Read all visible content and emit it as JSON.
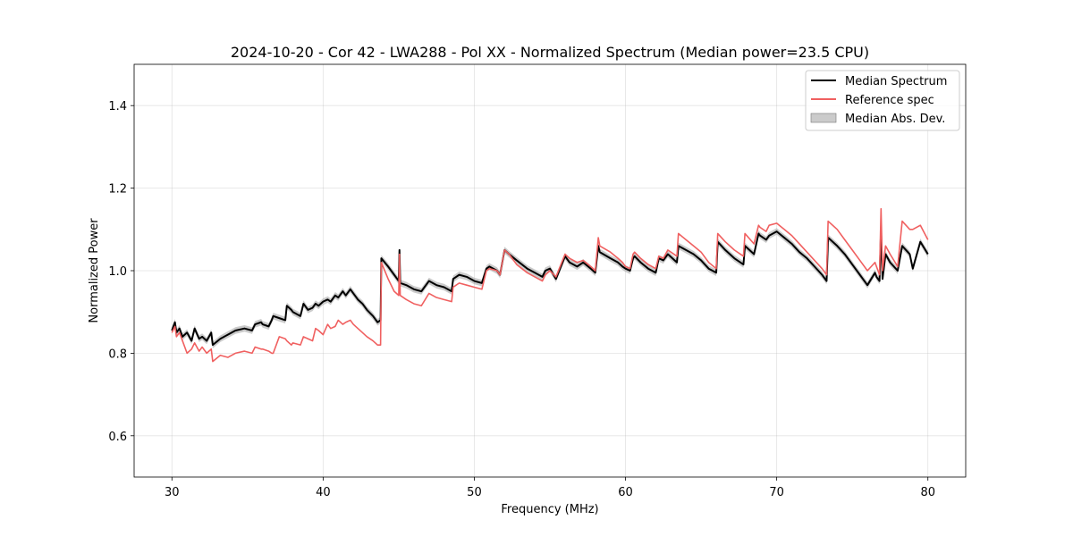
{
  "chart_data": {
    "type": "line",
    "title": "2024-10-20 - Cor 42 - LWA288 - Pol XX - Normalized Spectrum (Median power=23.5 CPU)",
    "xlabel": "Frequency (MHz)",
    "ylabel": "Normalized Power",
    "xlim": [
      27.5,
      82.5
    ],
    "ylim": [
      0.5,
      1.5
    ],
    "xticks": [
      30,
      40,
      50,
      60,
      70,
      80
    ],
    "yticks": [
      0.6,
      0.8,
      1.0,
      1.2,
      1.4
    ],
    "xtick_labels": [
      "30",
      "40",
      "50",
      "60",
      "70",
      "80"
    ],
    "ytick_labels": [
      "0.6",
      "0.8",
      "1.0",
      "1.2",
      "1.4"
    ],
    "grid": true,
    "legend_position": "top-right",
    "series": [
      {
        "name": "Median Spectrum",
        "color": "#000000",
        "x": [
          30.0,
          30.2,
          30.3,
          30.5,
          30.7,
          31.0,
          31.3,
          31.5,
          31.8,
          32.0,
          32.3,
          32.6,
          32.7,
          33.2,
          33.7,
          34.2,
          34.8,
          35.3,
          35.5,
          35.9,
          36.0,
          36.4,
          36.6,
          36.7,
          37.1,
          37.5,
          37.6,
          37.9,
          38.0,
          38.5,
          38.7,
          39.0,
          39.3,
          39.5,
          39.7,
          40.0,
          40.3,
          40.5,
          40.8,
          41.0,
          41.3,
          41.5,
          41.8,
          42.0,
          42.3,
          42.6,
          42.9,
          43.3,
          43.6,
          43.8,
          43.85,
          44.3,
          44.7,
          45.0,
          45.05,
          45.1,
          45.5,
          46.0,
          46.5,
          47.0,
          47.5,
          48.0,
          48.5,
          48.6,
          49.0,
          49.5,
          50.0,
          50.5,
          50.8,
          51.0,
          51.5,
          51.7,
          52.0,
          52.3,
          52.8,
          53.5,
          54.0,
          54.5,
          54.7,
          55.0,
          55.4,
          56.0,
          56.3,
          56.8,
          57.2,
          57.7,
          58.0,
          58.2,
          58.3,
          59.0,
          59.5,
          59.8,
          60.0,
          60.3,
          60.5,
          60.6,
          61.0,
          61.5,
          62.0,
          62.2,
          62.5,
          62.8,
          63.4,
          63.5,
          64.0,
          64.5,
          65.0,
          65.5,
          66.0,
          66.1,
          66.6,
          67.2,
          67.8,
          67.9,
          68.5,
          68.8,
          68.9,
          69.3,
          69.5,
          70.0,
          70.5,
          71.0,
          71.5,
          72.0,
          72.5,
          73.0,
          73.3,
          73.4,
          74.0,
          74.5,
          75.0,
          75.5,
          76.0,
          76.5,
          76.6,
          76.8,
          76.9,
          77.0,
          77.2,
          77.5,
          78.0,
          78.3,
          78.8,
          79.0,
          79.5,
          80.0
        ],
        "values": [
          0.855,
          0.875,
          0.85,
          0.86,
          0.84,
          0.85,
          0.83,
          0.86,
          0.835,
          0.84,
          0.83,
          0.85,
          0.82,
          0.835,
          0.845,
          0.855,
          0.86,
          0.855,
          0.87,
          0.875,
          0.87,
          0.865,
          0.88,
          0.89,
          0.885,
          0.88,
          0.915,
          0.905,
          0.9,
          0.89,
          0.92,
          0.905,
          0.91,
          0.92,
          0.915,
          0.925,
          0.93,
          0.925,
          0.94,
          0.935,
          0.95,
          0.94,
          0.955,
          0.945,
          0.93,
          0.92,
          0.905,
          0.89,
          0.875,
          0.88,
          1.03,
          1.01,
          0.99,
          0.975,
          1.05,
          0.97,
          0.965,
          0.955,
          0.95,
          0.975,
          0.965,
          0.96,
          0.95,
          0.98,
          0.99,
          0.985,
          0.975,
          0.97,
          1.005,
          1.01,
          1.0,
          0.99,
          1.05,
          1.04,
          1.025,
          1.005,
          0.995,
          0.985,
          1.0,
          1.005,
          0.98,
          1.035,
          1.02,
          1.01,
          1.02,
          1.005,
          0.995,
          1.06,
          1.045,
          1.03,
          1.02,
          1.01,
          1.005,
          1.0,
          1.03,
          1.035,
          1.02,
          1.005,
          0.995,
          1.03,
          1.025,
          1.04,
          1.02,
          1.06,
          1.05,
          1.04,
          1.025,
          1.005,
          0.995,
          1.07,
          1.05,
          1.03,
          1.015,
          1.06,
          1.04,
          1.09,
          1.085,
          1.075,
          1.085,
          1.095,
          1.08,
          1.065,
          1.045,
          1.03,
          1.01,
          0.99,
          0.975,
          1.08,
          1.06,
          1.04,
          1.015,
          0.99,
          0.965,
          0.995,
          0.985,
          0.975,
          1.1,
          0.98,
          1.04,
          1.02,
          1.0,
          1.06,
          1.04,
          1.005,
          1.07,
          1.04
        ]
      },
      {
        "name": "Reference spec",
        "color": "#f06060",
        "x": [
          30.0,
          30.2,
          30.3,
          30.5,
          30.7,
          31.0,
          31.3,
          31.5,
          31.8,
          32.0,
          32.3,
          32.6,
          32.7,
          33.2,
          33.7,
          34.2,
          34.8,
          35.3,
          35.5,
          35.9,
          36.0,
          36.4,
          36.6,
          36.7,
          37.1,
          37.5,
          37.6,
          37.9,
          38.0,
          38.5,
          38.7,
          39.0,
          39.3,
          39.5,
          39.7,
          40.0,
          40.3,
          40.5,
          40.8,
          41.0,
          41.3,
          41.5,
          41.8,
          42.0,
          42.3,
          42.6,
          42.9,
          43.3,
          43.6,
          43.8,
          43.85,
          44.3,
          44.7,
          45.0,
          45.05,
          45.1,
          45.5,
          46.0,
          46.5,
          47.0,
          47.5,
          48.0,
          48.5,
          48.6,
          49.0,
          49.5,
          50.0,
          50.5,
          50.8,
          51.0,
          51.5,
          51.7,
          52.0,
          52.3,
          52.8,
          53.5,
          54.0,
          54.5,
          54.7,
          55.0,
          55.4,
          56.0,
          56.3,
          56.8,
          57.2,
          57.7,
          58.0,
          58.2,
          58.3,
          59.0,
          59.5,
          59.8,
          60.0,
          60.3,
          60.5,
          60.6,
          61.0,
          61.5,
          62.0,
          62.2,
          62.5,
          62.8,
          63.4,
          63.5,
          64.0,
          64.5,
          65.0,
          65.5,
          66.0,
          66.1,
          66.6,
          67.2,
          67.8,
          67.9,
          68.5,
          68.8,
          68.9,
          69.3,
          69.5,
          70.0,
          70.5,
          71.0,
          71.5,
          72.0,
          72.5,
          73.0,
          73.3,
          73.4,
          74.0,
          74.5,
          75.0,
          75.5,
          76.0,
          76.5,
          76.6,
          76.8,
          76.9,
          77.0,
          77.2,
          77.5,
          78.0,
          78.3,
          78.8,
          79.0,
          79.5,
          80.0
        ],
        "values": [
          0.85,
          0.865,
          0.84,
          0.85,
          0.83,
          0.8,
          0.81,
          0.825,
          0.805,
          0.815,
          0.8,
          0.81,
          0.78,
          0.795,
          0.79,
          0.8,
          0.805,
          0.8,
          0.815,
          0.81,
          0.81,
          0.805,
          0.8,
          0.8,
          0.84,
          0.835,
          0.83,
          0.82,
          0.825,
          0.82,
          0.84,
          0.835,
          0.83,
          0.86,
          0.855,
          0.845,
          0.87,
          0.86,
          0.865,
          0.88,
          0.87,
          0.875,
          0.88,
          0.87,
          0.86,
          0.85,
          0.84,
          0.83,
          0.82,
          0.82,
          1.02,
          0.98,
          0.95,
          0.94,
          1.04,
          0.94,
          0.93,
          0.92,
          0.915,
          0.945,
          0.935,
          0.93,
          0.925,
          0.96,
          0.97,
          0.965,
          0.96,
          0.955,
          1.0,
          1.005,
          1.0,
          0.99,
          1.05,
          1.04,
          1.015,
          0.995,
          0.985,
          0.975,
          0.99,
          1.0,
          0.985,
          1.04,
          1.03,
          1.02,
          1.025,
          1.01,
          1.0,
          1.08,
          1.06,
          1.045,
          1.03,
          1.02,
          1.01,
          1.005,
          1.04,
          1.045,
          1.03,
          1.015,
          1.005,
          1.035,
          1.03,
          1.05,
          1.035,
          1.09,
          1.075,
          1.06,
          1.045,
          1.02,
          1.005,
          1.09,
          1.07,
          1.05,
          1.035,
          1.09,
          1.065,
          1.11,
          1.105,
          1.095,
          1.11,
          1.115,
          1.1,
          1.085,
          1.065,
          1.045,
          1.025,
          1.005,
          0.99,
          1.12,
          1.1,
          1.075,
          1.05,
          1.025,
          1.0,
          1.02,
          1.01,
          0.99,
          1.15,
          1.0,
          1.06,
          1.04,
          1.01,
          1.12,
          1.1,
          1.1,
          1.11,
          1.075
        ]
      }
    ],
    "band": {
      "name": "Median Abs. Dev.",
      "color": "#a0a0a0",
      "half_width": 0.008
    }
  }
}
